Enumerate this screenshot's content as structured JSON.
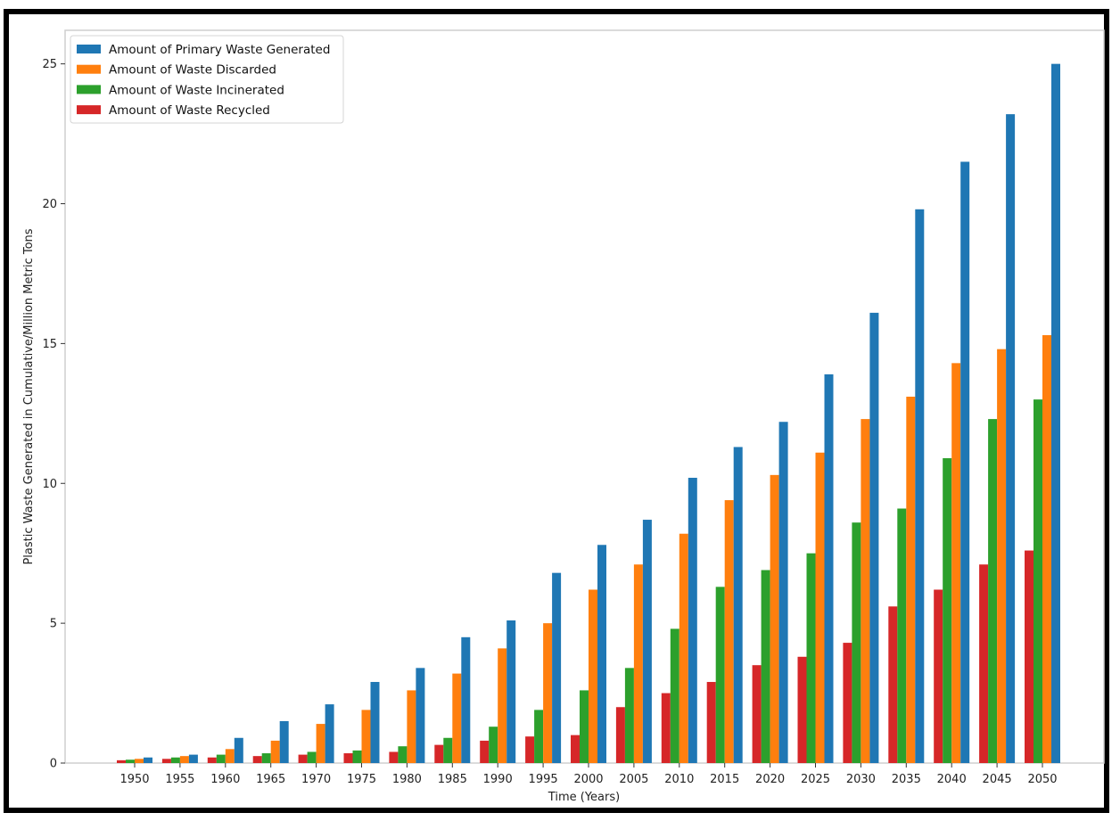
{
  "chart_data": {
    "type": "bar",
    "title": "",
    "xlabel": "Time (Years)",
    "ylabel": "Plastic Waste Generated in Cumulative/Million Metric Tons",
    "ylim": [
      0,
      26.2
    ],
    "yticks": [
      "0",
      "5",
      "10",
      "15",
      "20",
      "25"
    ],
    "legend_position": "top-left",
    "categories": [
      "1950",
      "1955",
      "1960",
      "1965",
      "1970",
      "1975",
      "1980",
      "1985",
      "1990",
      "1995",
      "2000",
      "2005",
      "2010",
      "2015",
      "2020",
      "2025",
      "2030",
      "2035",
      "2040",
      "2045",
      "2050"
    ],
    "series": [
      {
        "name": "Amount of Waste Recycled",
        "color": "#d62728",
        "values": [
          0.1,
          0.15,
          0.2,
          0.25,
          0.3,
          0.35,
          0.4,
          0.65,
          0.8,
          0.95,
          1.0,
          2.0,
          2.5,
          2.9,
          3.5,
          3.8,
          4.3,
          5.6,
          6.2,
          7.1,
          7.6
        ]
      },
      {
        "name": "Amount of Waste Incinerated",
        "color": "#2ca02c",
        "values": [
          0.12,
          0.2,
          0.3,
          0.35,
          0.4,
          0.45,
          0.6,
          0.9,
          1.3,
          1.9,
          2.6,
          3.4,
          4.8,
          6.3,
          6.9,
          7.5,
          8.6,
          9.1,
          10.9,
          12.3,
          13.0
        ]
      },
      {
        "name": "Amount of Waste Discarded",
        "color": "#ff7f0e",
        "values": [
          0.15,
          0.25,
          0.5,
          0.8,
          1.4,
          1.9,
          2.6,
          3.2,
          4.1,
          5.0,
          6.2,
          7.1,
          8.2,
          9.4,
          10.3,
          11.1,
          12.3,
          13.1,
          14.3,
          14.8,
          15.3
        ]
      },
      {
        "name": "Amount of Primary Waste Generated",
        "color": "#1f77b4",
        "values": [
          0.2,
          0.3,
          0.9,
          1.5,
          2.1,
          2.9,
          3.4,
          4.5,
          5.1,
          6.8,
          7.8,
          8.7,
          10.2,
          11.3,
          12.2,
          13.9,
          16.1,
          19.8,
          21.5,
          23.2,
          25.0
        ]
      }
    ],
    "legend": [
      {
        "name": "Amount of Primary Waste Generated",
        "color": "#1f77b4"
      },
      {
        "name": "Amount of Waste Discarded",
        "color": "#ff7f0e"
      },
      {
        "name": "Amount of Waste Incinerated",
        "color": "#2ca02c"
      },
      {
        "name": "Amount of Waste Recycled",
        "color": "#d62728"
      }
    ]
  }
}
